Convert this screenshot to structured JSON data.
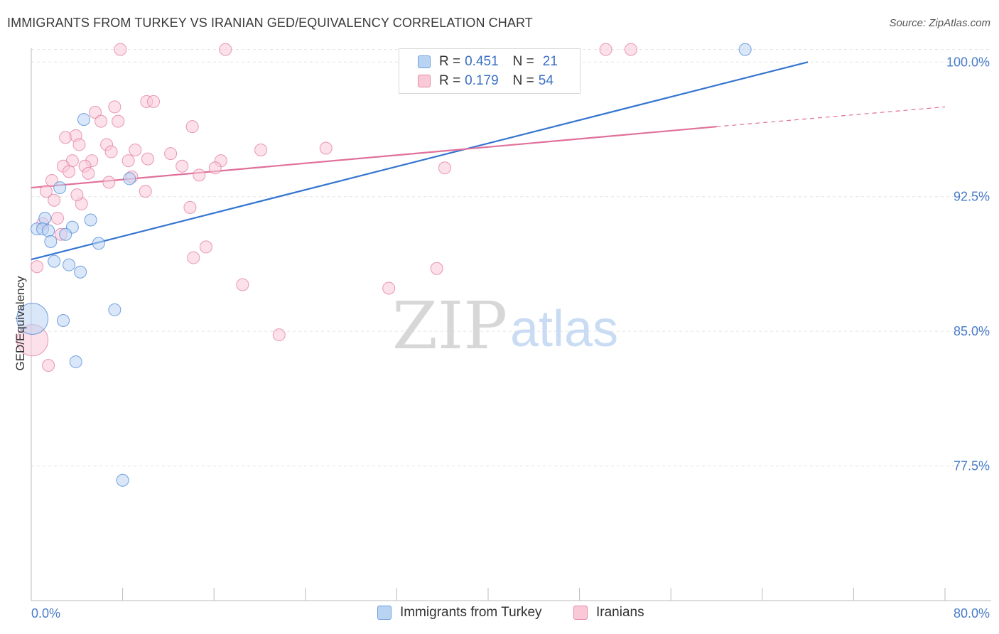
{
  "header": {
    "title": "IMMIGRANTS FROM TURKEY VS IRANIAN GED/EQUIVALENCY CORRELATION CHART",
    "source": "Source: ZipAtlas.com"
  },
  "watermark": {
    "zip": "ZIP",
    "atlas": "atlas"
  },
  "legend": {
    "rows": [
      {
        "r_label": "R =",
        "r_value": "0.451",
        "n_label": "N =",
        "n_value": "21",
        "color": "#a9c8f0",
        "border": "#6f9fdc"
      },
      {
        "r_label": "R =",
        "r_value": "0.179",
        "n_label": "N =",
        "n_value": "54",
        "color": "#f7bfd0",
        "border": "#e58aa6"
      }
    ]
  },
  "bottom_legend": [
    {
      "label": "Immigrants from Turkey",
      "color": "#b9d3f3",
      "border": "#6f9fdc"
    },
    {
      "label": "Iranians",
      "color": "#f9c9d8",
      "border": "#e58aa6"
    }
  ],
  "chart_data": {
    "type": "scatter",
    "title": "IMMIGRANTS FROM TURKEY VS IRANIAN GED/EQUIVALENCY CORRELATION CHART",
    "xlabel": "",
    "ylabel": "GED/Equivalency",
    "xlim": [
      0,
      80
    ],
    "ylim": [
      70,
      101
    ],
    "x_ticks": [
      0,
      80
    ],
    "x_tick_labels": [
      "0.0%",
      "80.0%"
    ],
    "y_ticks": [
      77.5,
      85.0,
      92.5,
      100.0
    ],
    "y_tick_labels": [
      "77.5%",
      "85.0%",
      "92.5%",
      "100.0%"
    ],
    "grid": true,
    "series": [
      {
        "name": "Immigrants from Turkey",
        "color": "#4a86d8",
        "fill": "#b9d3f3",
        "trend": {
          "x": [
            0,
            68
          ],
          "y": [
            89.0,
            100.0
          ],
          "color": "#3575d0"
        },
        "points": [
          {
            "x": 4.6,
            "y": 96.8
          },
          {
            "x": 2.5,
            "y": 93.0
          },
          {
            "x": 8.6,
            "y": 93.5
          },
          {
            "x": 1.2,
            "y": 91.3
          },
          {
            "x": 5.2,
            "y": 91.2
          },
          {
            "x": 0.5,
            "y": 90.7
          },
          {
            "x": 1.0,
            "y": 90.7
          },
          {
            "x": 1.5,
            "y": 90.6
          },
          {
            "x": 3.6,
            "y": 90.8
          },
          {
            "x": 3.0,
            "y": 90.4
          },
          {
            "x": 1.7,
            "y": 90.0
          },
          {
            "x": 5.9,
            "y": 89.9
          },
          {
            "x": 2.0,
            "y": 88.9
          },
          {
            "x": 3.3,
            "y": 88.7
          },
          {
            "x": 4.3,
            "y": 88.3
          },
          {
            "x": 0.1,
            "y": 85.7,
            "big": true
          },
          {
            "x": 2.8,
            "y": 85.6
          },
          {
            "x": 7.3,
            "y": 86.2
          },
          {
            "x": 3.9,
            "y": 83.3
          },
          {
            "x": 8.0,
            "y": 76.7
          },
          {
            "x": 62.5,
            "y": 100.7
          }
        ]
      },
      {
        "name": "Iranians",
        "color": "#e07a9c",
        "fill": "#f9c9d8",
        "trend": {
          "x": [
            0,
            60
          ],
          "y": [
            93.0,
            96.4
          ],
          "dashed_to": {
            "x": 80,
            "y": 97.5
          },
          "color": "#e0709a"
        },
        "points": [
          {
            "x": 7.8,
            "y": 100.7
          },
          {
            "x": 17.0,
            "y": 100.7
          },
          {
            "x": 50.3,
            "y": 100.7
          },
          {
            "x": 52.5,
            "y": 100.7
          },
          {
            "x": 10.1,
            "y": 97.8
          },
          {
            "x": 10.7,
            "y": 97.8
          },
          {
            "x": 7.3,
            "y": 97.5
          },
          {
            "x": 5.6,
            "y": 97.2
          },
          {
            "x": 6.1,
            "y": 96.7
          },
          {
            "x": 14.1,
            "y": 96.4
          },
          {
            "x": 3.0,
            "y": 95.8
          },
          {
            "x": 3.9,
            "y": 95.9
          },
          {
            "x": 4.2,
            "y": 95.4
          },
          {
            "x": 6.6,
            "y": 95.4
          },
          {
            "x": 7.0,
            "y": 95.0
          },
          {
            "x": 9.1,
            "y": 95.1
          },
          {
            "x": 12.2,
            "y": 94.9
          },
          {
            "x": 20.1,
            "y": 95.1
          },
          {
            "x": 25.8,
            "y": 95.2
          },
          {
            "x": 3.6,
            "y": 94.5
          },
          {
            "x": 5.3,
            "y": 94.5
          },
          {
            "x": 8.5,
            "y": 94.5
          },
          {
            "x": 10.2,
            "y": 94.6
          },
          {
            "x": 16.6,
            "y": 94.5
          },
          {
            "x": 2.8,
            "y": 94.2
          },
          {
            "x": 4.7,
            "y": 94.2
          },
          {
            "x": 13.2,
            "y": 94.2
          },
          {
            "x": 3.3,
            "y": 93.9
          },
          {
            "x": 5.0,
            "y": 93.8
          },
          {
            "x": 8.8,
            "y": 93.6
          },
          {
            "x": 14.7,
            "y": 93.7
          },
          {
            "x": 16.1,
            "y": 94.1
          },
          {
            "x": 36.2,
            "y": 94.1
          },
          {
            "x": 6.8,
            "y": 93.3
          },
          {
            "x": 1.8,
            "y": 93.4
          },
          {
            "x": 1.3,
            "y": 92.8
          },
          {
            "x": 10.0,
            "y": 92.8
          },
          {
            "x": 2.0,
            "y": 92.3
          },
          {
            "x": 4.4,
            "y": 92.1
          },
          {
            "x": 13.9,
            "y": 91.9
          },
          {
            "x": 2.3,
            "y": 91.3
          },
          {
            "x": 1.0,
            "y": 91.0
          },
          {
            "x": 2.6,
            "y": 90.4
          },
          {
            "x": 15.3,
            "y": 89.7
          },
          {
            "x": 14.2,
            "y": 89.1
          },
          {
            "x": 0.5,
            "y": 88.6
          },
          {
            "x": 35.5,
            "y": 88.5
          },
          {
            "x": 18.5,
            "y": 87.6
          },
          {
            "x": 31.3,
            "y": 87.4
          },
          {
            "x": 21.7,
            "y": 84.8
          },
          {
            "x": 0.1,
            "y": 84.5,
            "big": true
          },
          {
            "x": 1.5,
            "y": 83.1
          },
          {
            "x": 4.0,
            "y": 92.6
          },
          {
            "x": 7.6,
            "y": 96.7
          }
        ]
      }
    ]
  }
}
